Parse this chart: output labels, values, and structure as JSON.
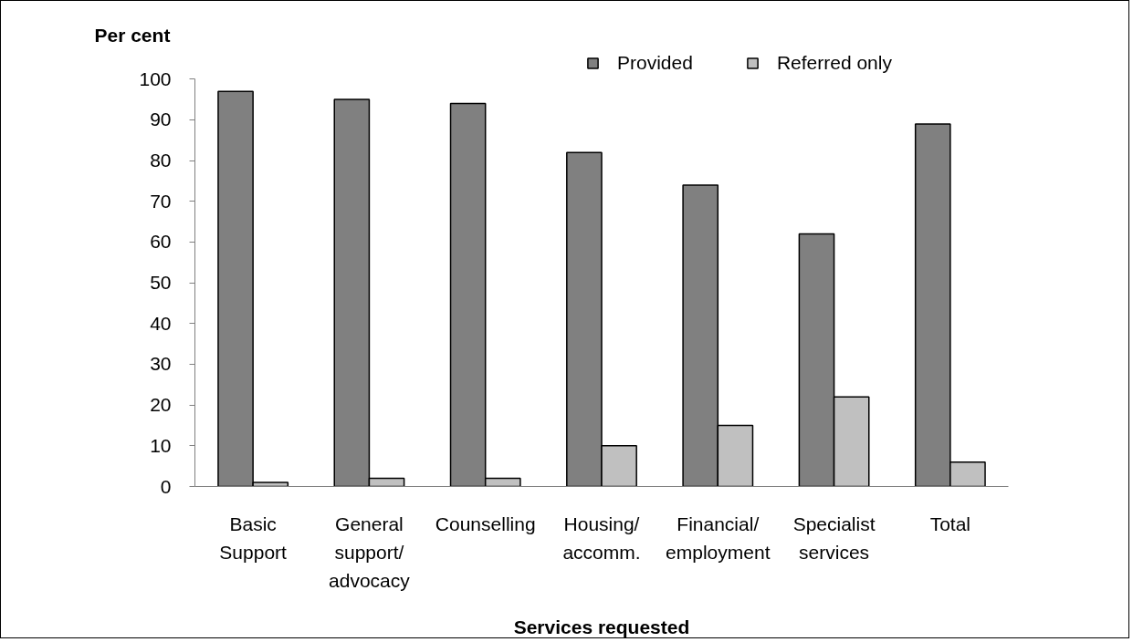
{
  "chart_data": {
    "type": "bar",
    "ylabel": "Per cent",
    "xlabel": "Services requested",
    "categories": [
      "Basic Support",
      "General support/advocacy",
      "Counselling",
      "Housing/accomm.",
      "Financial/employment",
      "Specialist services",
      "Total"
    ],
    "series": [
      {
        "name": "Provided",
        "color": "#808080",
        "values": [
          97,
          95,
          94,
          82,
          74,
          62,
          89
        ]
      },
      {
        "name": "Referred only",
        "color": "#c0c0c0",
        "values": [
          1,
          2,
          2,
          10,
          15,
          22,
          6
        ]
      }
    ],
    "ylim": [
      0,
      100
    ],
    "yticks": [
      0,
      10,
      20,
      30,
      40,
      50,
      60,
      70,
      80,
      90,
      100
    ],
    "legend": "top right"
  }
}
